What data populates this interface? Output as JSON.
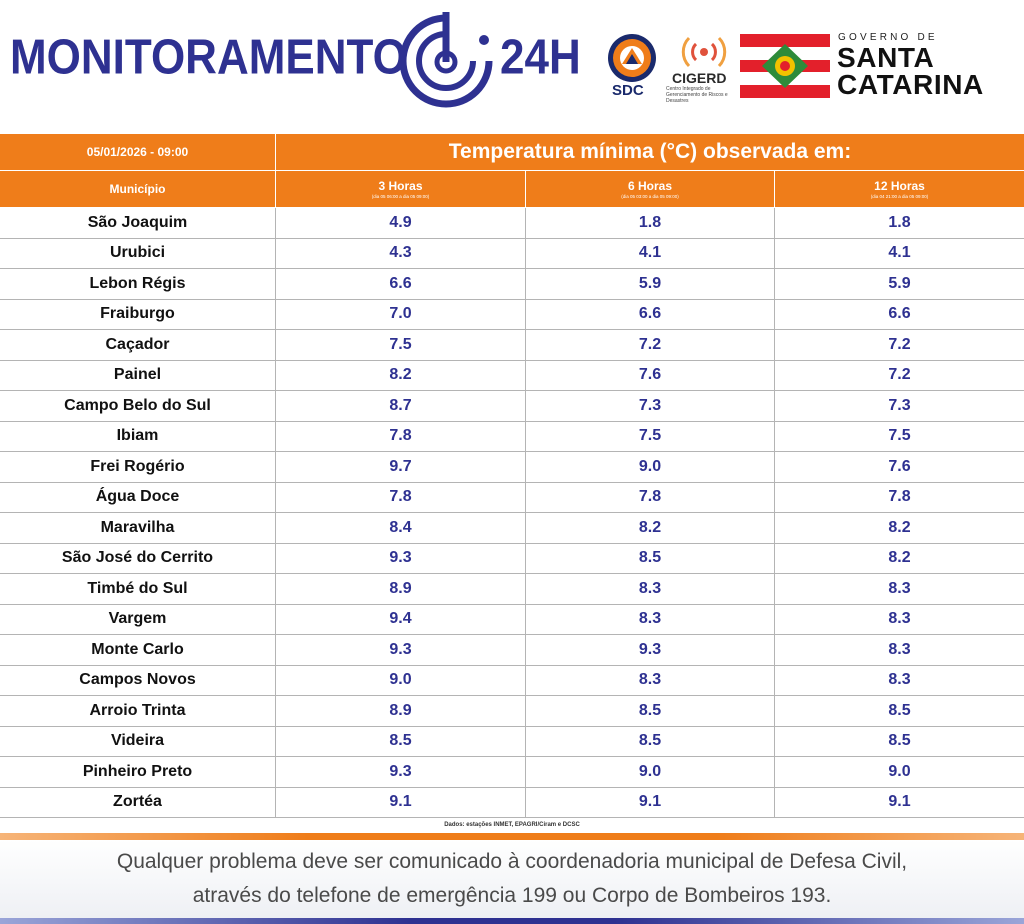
{
  "header": {
    "brand_left": "MONITORAMENTO",
    "brand_right": "24H",
    "sdc_label": "SDC",
    "cigerd_label": "CIGERD",
    "cigerd_sub": "Centro Integrado de Gerenciamento de Riscos e Desastres",
    "gov_top": "GOVERNO DE",
    "gov_name_1": "SANTA",
    "gov_name_2": "CATARINA",
    "colors": {
      "brand_blue": "#2e3191",
      "accent_orange": "#ef7d1a"
    }
  },
  "table": {
    "datetime": "05/01/2026 - 09:00",
    "title": "Temperatura mínima (°C) observada em:",
    "municipio_header": "Município",
    "columns": [
      {
        "label": "3 Horas",
        "sub": "(dia 05 06:00 a dia 05 09:00)"
      },
      {
        "label": "6 Horas",
        "sub": "(dia 05 03:00 a dia 05 09:00)"
      },
      {
        "label": "12 Horas",
        "sub": "(dia 04 21:00 a dia 05 09:00)"
      }
    ],
    "rows": [
      {
        "municipio": "São Joaquim",
        "h3": "4.9",
        "h6": "1.8",
        "h12": "1.8"
      },
      {
        "municipio": "Urubici",
        "h3": "4.3",
        "h6": "4.1",
        "h12": "4.1"
      },
      {
        "municipio": "Lebon Régis",
        "h3": "6.6",
        "h6": "5.9",
        "h12": "5.9"
      },
      {
        "municipio": "Fraiburgo",
        "h3": "7.0",
        "h6": "6.6",
        "h12": "6.6"
      },
      {
        "municipio": "Caçador",
        "h3": "7.5",
        "h6": "7.2",
        "h12": "7.2"
      },
      {
        "municipio": "Painel",
        "h3": "8.2",
        "h6": "7.6",
        "h12": "7.2"
      },
      {
        "municipio": "Campo Belo do Sul",
        "h3": "8.7",
        "h6": "7.3",
        "h12": "7.3"
      },
      {
        "municipio": "Ibiam",
        "h3": "7.8",
        "h6": "7.5",
        "h12": "7.5"
      },
      {
        "municipio": "Frei Rogério",
        "h3": "9.7",
        "h6": "9.0",
        "h12": "7.6"
      },
      {
        "municipio": "Água Doce",
        "h3": "7.8",
        "h6": "7.8",
        "h12": "7.8"
      },
      {
        "municipio": "Maravilha",
        "h3": "8.4",
        "h6": "8.2",
        "h12": "8.2"
      },
      {
        "municipio": "São José do Cerrito",
        "h3": "9.3",
        "h6": "8.5",
        "h12": "8.2"
      },
      {
        "municipio": "Timbé do Sul",
        "h3": "8.9",
        "h6": "8.3",
        "h12": "8.3"
      },
      {
        "municipio": "Vargem",
        "h3": "9.4",
        "h6": "8.3",
        "h12": "8.3"
      },
      {
        "municipio": "Monte Carlo",
        "h3": "9.3",
        "h6": "9.3",
        "h12": "8.3"
      },
      {
        "municipio": "Campos Novos",
        "h3": "9.0",
        "h6": "8.3",
        "h12": "8.3"
      },
      {
        "municipio": "Arroio Trinta",
        "h3": "8.9",
        "h6": "8.5",
        "h12": "8.5"
      },
      {
        "municipio": "Videira",
        "h3": "8.5",
        "h6": "8.5",
        "h12": "8.5"
      },
      {
        "municipio": "Pinheiro Preto",
        "h3": "9.3",
        "h6": "9.0",
        "h12": "9.0"
      },
      {
        "municipio": "Zortéa",
        "h3": "9.1",
        "h6": "9.1",
        "h12": "9.1"
      }
    ],
    "source": "Dados: estações INMET, EPAGRI/Ciram e DCSC"
  },
  "footer": {
    "line1": "Qualquer problema deve ser comunicado à coordenadoria municipal de Defesa Civil,",
    "line2": "através do telefone de emergência 199 ou Corpo de Bombeiros 193."
  }
}
